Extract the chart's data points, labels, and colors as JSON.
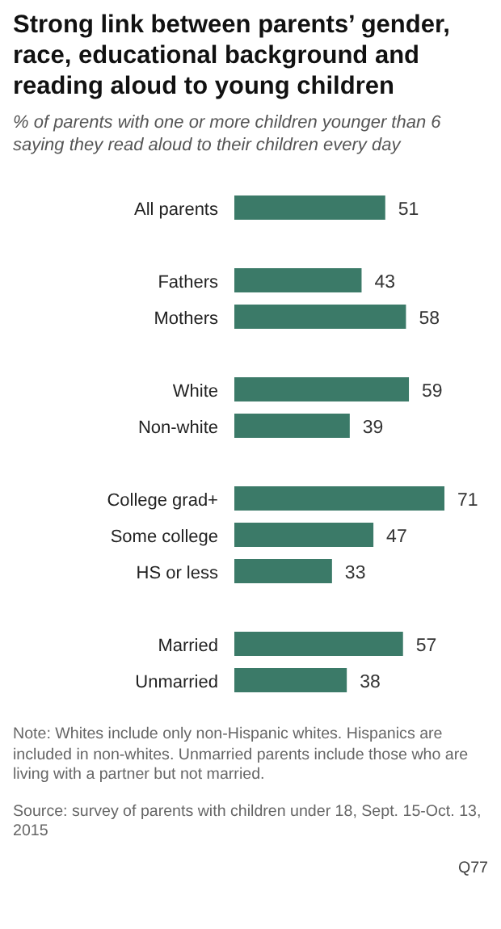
{
  "chart_data": {
    "type": "bar",
    "orientation": "horizontal",
    "title": "Strong link between parents’ gender, race, educational background and reading aloud to young children",
    "subtitle": "% of parents with one or more children younger than 6 saying they read aloud to their children every day",
    "categories": [
      "All parents",
      null,
      "Fathers",
      "Mothers",
      null,
      "White",
      "Non-white",
      null,
      "College grad+",
      "Some college",
      "HS or less",
      null,
      "Married",
      "Unmarried"
    ],
    "values": [
      51,
      null,
      43,
      58,
      null,
      59,
      39,
      null,
      71,
      47,
      33,
      null,
      57,
      38
    ],
    "color": "#3b7a68",
    "data_labels": true,
    "annotations": [
      "Note: Whites include only non-Hispanic whites. Hispanics are included in non-whites. Unmarried parents include those who are living with a partner but not married.",
      "Source: survey of parents with children under 18, Sept. 15-Oct. 13, 2015",
      "Q77"
    ]
  }
}
